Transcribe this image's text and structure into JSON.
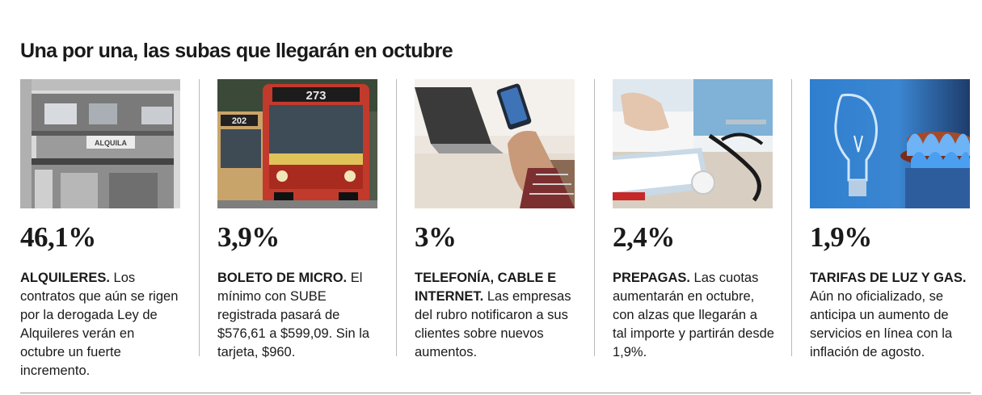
{
  "headline": "Una por una, las subas que llegarán en octubre",
  "items": [
    {
      "percent": "46,1%",
      "lead": "ALQUILERES.",
      "text": " Los contratos que aún se rigen por la derogada Ley de Alquileres verán en octubre un fuerte incremento.",
      "photo_signs": [
        "ALQUILA"
      ]
    },
    {
      "percent": "3,9%",
      "lead": "BOLETO DE MICRO.",
      "text": " El mínimo con SUBE registrada pasará de $576,61 a $599,09. Sin la tarjeta, $960.",
      "photo_signs": [
        "273",
        "202"
      ]
    },
    {
      "percent": "3%",
      "lead": "TELEFONÍA, CABLE E INTERNET.",
      "text": " Las empresas del rubro notificaron a sus clientes sobre nuevos aumentos."
    },
    {
      "percent": "2,4%",
      "lead": "PREPAGAS.",
      "text": " Las cuotas aumentarán en octubre, con alzas que llegarán a tal importe y partirán desde 1,9%."
    },
    {
      "percent": "1,9%",
      "lead": "TARIFAS DE LUZ Y GAS.",
      "text": " Aún no oficializado, se anticipa un aumento de servicios en línea con la inflación de agosto."
    }
  ]
}
